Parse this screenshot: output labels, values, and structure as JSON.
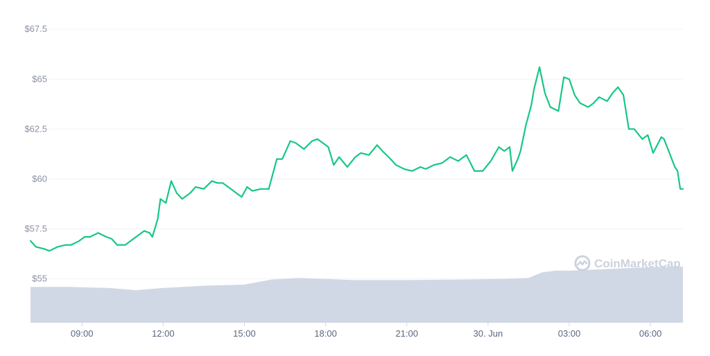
{
  "chart_data": {
    "type": "line",
    "y_tick_labels": [
      "$55",
      "$57.5",
      "$60",
      "$62.5",
      "$65",
      "$67.5"
    ],
    "y_tick_values": [
      55,
      57.5,
      60,
      62.5,
      65,
      67.5
    ],
    "ylim": [
      52.8,
      68.2
    ],
    "x_tick_labels": [
      "09:00",
      "12:00",
      "15:00",
      "18:00",
      "21:00",
      "30. Jun",
      "03:00",
      "06:00"
    ],
    "x_tick_values": [
      9,
      12,
      15,
      18,
      21,
      24,
      27,
      30
    ],
    "xlim": [
      7.1,
      31.2
    ],
    "grid": true,
    "colors": {
      "price_line": "#16c784",
      "volume_area": "#cfd6e4"
    },
    "price_series": {
      "x": [
        7.1,
        7.3,
        7.6,
        7.8,
        8.1,
        8.4,
        8.6,
        8.9,
        9.1,
        9.3,
        9.6,
        9.9,
        10.1,
        10.3,
        10.6,
        10.8,
        11.1,
        11.3,
        11.5,
        11.6,
        11.8,
        11.9,
        12.1,
        12.3,
        12.5,
        12.7,
        13.0,
        13.2,
        13.5,
        13.8,
        14.0,
        14.2,
        14.5,
        14.7,
        14.9,
        15.1,
        15.3,
        15.6,
        15.9,
        16.2,
        16.4,
        16.7,
        16.9,
        17.2,
        17.5,
        17.7,
        17.9,
        18.1,
        18.3,
        18.5,
        18.8,
        19.1,
        19.3,
        19.6,
        19.9,
        20.1,
        20.4,
        20.6,
        20.9,
        21.2,
        21.5,
        21.7,
        22.0,
        22.3,
        22.6,
        22.9,
        23.2,
        23.5,
        23.8,
        24.1,
        24.4,
        24.6,
        24.8,
        24.9,
        25.1,
        25.2,
        25.4,
        25.6,
        25.7,
        25.9,
        26.1,
        26.3,
        26.6,
        26.8,
        27.0,
        27.2,
        27.4,
        27.7,
        27.9,
        28.1,
        28.4,
        28.6,
        28.8,
        29.0,
        29.2,
        29.4,
        29.7,
        29.9,
        30.1,
        30.4,
        30.5,
        30.7,
        30.9,
        31.0,
        31.1,
        31.2
      ],
      "y": [
        56.9,
        56.6,
        56.5,
        56.4,
        56.6,
        56.7,
        56.7,
        56.9,
        57.1,
        57.1,
        57.3,
        57.1,
        57.0,
        56.7,
        56.7,
        56.9,
        57.2,
        57.4,
        57.3,
        57.1,
        58.0,
        59.0,
        58.8,
        59.9,
        59.3,
        59.0,
        59.3,
        59.6,
        59.5,
        59.9,
        59.8,
        59.8,
        59.5,
        59.3,
        59.1,
        59.6,
        59.4,
        59.5,
        59.5,
        61.0,
        61.0,
        61.9,
        61.8,
        61.5,
        61.9,
        62.0,
        61.8,
        61.6,
        60.7,
        61.1,
        60.6,
        61.1,
        61.3,
        61.2,
        61.7,
        61.4,
        61.0,
        60.7,
        60.5,
        60.4,
        60.6,
        60.5,
        60.7,
        60.8,
        61.1,
        60.9,
        61.2,
        60.4,
        60.4,
        60.9,
        61.6,
        61.4,
        61.6,
        60.4,
        61.0,
        61.4,
        62.7,
        63.7,
        64.5,
        65.6,
        64.3,
        63.6,
        63.4,
        65.1,
        65.0,
        64.2,
        63.8,
        63.6,
        63.8,
        64.1,
        63.9,
        64.3,
        64.6,
        64.2,
        62.5,
        62.5,
        62.0,
        62.2,
        61.3,
        62.1,
        62.0,
        61.3,
        60.6,
        60.4,
        59.5,
        59.5
      ]
    },
    "volume_series": {
      "x": [
        7.1,
        8.5,
        10.0,
        11.0,
        12.0,
        13.5,
        15.0,
        16.0,
        17.0,
        18.0,
        19.0,
        21.0,
        23.0,
        24.5,
        25.5,
        26.0,
        26.5,
        27.0,
        28.5,
        30.0,
        31.2
      ],
      "level": [
        0.64,
        0.64,
        0.62,
        0.58,
        0.62,
        0.66,
        0.68,
        0.77,
        0.8,
        0.78,
        0.76,
        0.76,
        0.77,
        0.78,
        0.8,
        0.9,
        0.93,
        0.93,
        0.96,
        0.99,
        1.0
      ]
    },
    "watermark": "CoinMarketCap"
  }
}
